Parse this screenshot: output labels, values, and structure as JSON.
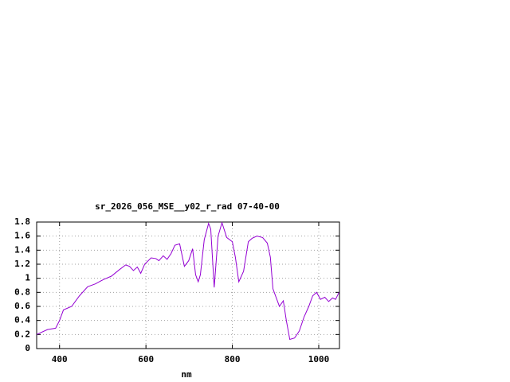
{
  "chart_data": {
    "type": "line",
    "title": "sr_2026_056_MSE__y02_r_rad 07-40-00",
    "x_label": "nm",
    "x": [
      347,
      372,
      391,
      400,
      409,
      428,
      446,
      465,
      483,
      501,
      520,
      538,
      553,
      562,
      571,
      580,
      588,
      597,
      612,
      623,
      630,
      640,
      649,
      658,
      667,
      678,
      689,
      699,
      708,
      715,
      721,
      726,
      735,
      745,
      750,
      758,
      767,
      776,
      787,
      800,
      807,
      815,
      826,
      837,
      846,
      857,
      870,
      881,
      888,
      894,
      903,
      909,
      918,
      925,
      933,
      944,
      955,
      966,
      977,
      986,
      995,
      1004,
      1014,
      1023,
      1032,
      1039,
      1047
    ],
    "series": [
      {
        "color": "#9400d3",
        "values": [
          0.2,
          0.27,
          0.29,
          0.4,
          0.55,
          0.6,
          0.75,
          0.88,
          0.92,
          0.98,
          1.03,
          1.12,
          1.19,
          1.17,
          1.11,
          1.16,
          1.07,
          1.2,
          1.29,
          1.28,
          1.25,
          1.32,
          1.27,
          1.35,
          1.47,
          1.49,
          1.17,
          1.25,
          1.42,
          1.05,
          0.95,
          1.05,
          1.55,
          1.78,
          1.7,
          0.87,
          1.6,
          1.79,
          1.58,
          1.52,
          1.3,
          0.95,
          1.1,
          1.52,
          1.57,
          1.6,
          1.58,
          1.5,
          1.3,
          0.85,
          0.7,
          0.6,
          0.68,
          0.4,
          0.13,
          0.15,
          0.25,
          0.45,
          0.6,
          0.75,
          0.8,
          0.7,
          0.73,
          0.67,
          0.72,
          0.7,
          0.8
        ]
      }
    ],
    "xlim": [
      347,
      1048
    ],
    "xticks": [
      400,
      600,
      800,
      1000
    ],
    "ylim": [
      0,
      1.8
    ],
    "yticks": [
      0,
      0.2,
      0.4,
      0.6,
      0.8,
      1,
      1.2,
      1.4,
      1.6,
      1.8
    ],
    "grid": true
  }
}
